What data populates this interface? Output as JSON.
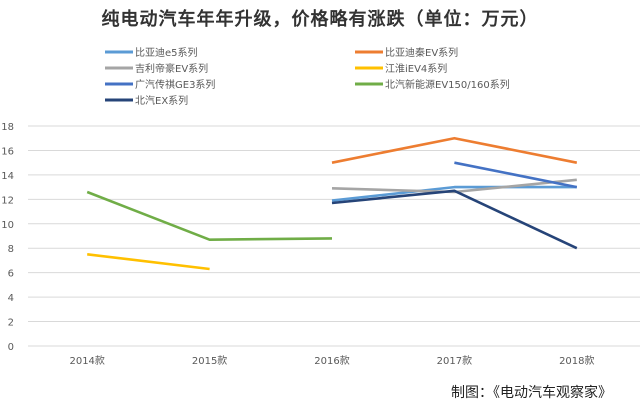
{
  "chart_data": {
    "type": "line",
    "title": "纯电动汽车年年升级，价格略有涨跌（单位：万元）",
    "categories": [
      "2014款",
      "2015款",
      "2016款",
      "2017款",
      "2018款"
    ],
    "ylim": [
      0,
      18
    ],
    "yticks": [
      0,
      2,
      4,
      6,
      8,
      10,
      12,
      14,
      16,
      18
    ],
    "grid": true,
    "legend": "top",
    "series": [
      {
        "name": "比亚迪e5系列",
        "color": "#5B9BD5",
        "values": [
          null,
          null,
          11.9,
          13.0,
          13.0
        ]
      },
      {
        "name": "比亚迪秦EV系列",
        "color": "#ED7D31",
        "values": [
          null,
          null,
          15.0,
          17.0,
          15.0
        ]
      },
      {
        "name": "吉利帝豪EV系列",
        "color": "#A5A5A5",
        "values": [
          null,
          null,
          12.9,
          12.6,
          13.6
        ]
      },
      {
        "name": "江淮iEV4系列",
        "color": "#FFC000",
        "values": [
          7.5,
          6.3,
          null,
          null,
          null
        ]
      },
      {
        "name": "广汽传祺GE3系列",
        "color": "#4472C4",
        "values": [
          null,
          null,
          null,
          15.0,
          13.0
        ]
      },
      {
        "name": "北汽新能源EV150/160系列",
        "color": "#70AD47",
        "values": [
          12.6,
          8.7,
          8.8,
          null,
          null
        ]
      },
      {
        "name": "北汽EX系列",
        "color": "#264478",
        "values": [
          null,
          null,
          11.7,
          12.7,
          8.0
        ]
      }
    ]
  },
  "credit": "制图：《电动汽车观察家》"
}
